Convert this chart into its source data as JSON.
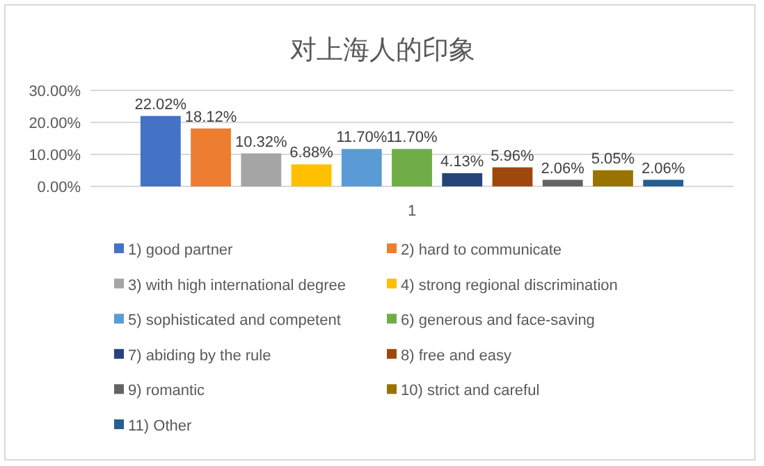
{
  "chart_data": {
    "type": "bar",
    "title": "对上海人的印象",
    "categories": [
      "1"
    ],
    "ylim": [
      0,
      30
    ],
    "yticks": [
      {
        "value": 0,
        "label": "0.00%"
      },
      {
        "value": 10,
        "label": "10.00%"
      },
      {
        "value": 20,
        "label": "20.00%"
      },
      {
        "value": 30,
        "label": "30.00%"
      }
    ],
    "grid": "y",
    "legend": "bottom",
    "series": [
      {
        "name": "1) good partner",
        "color": "#4472c4",
        "values": [
          22.02
        ],
        "value_labels": [
          "22.02%"
        ]
      },
      {
        "name": "2) hard to communicate",
        "color": "#ed7d31",
        "values": [
          18.12
        ],
        "value_labels": [
          "18.12%"
        ]
      },
      {
        "name": "3) with high international degree",
        "color": "#a5a5a5",
        "values": [
          10.32
        ],
        "value_labels": [
          "10.32%"
        ]
      },
      {
        "name": "4) strong regional discrimination",
        "color": "#ffc000",
        "values": [
          6.88
        ],
        "value_labels": [
          "6.88%"
        ]
      },
      {
        "name": "5) sophisticated and competent",
        "color": "#5b9bd5",
        "values": [
          11.7
        ],
        "value_labels": [
          "11.70%"
        ]
      },
      {
        "name": "6) generous and face-saving",
        "color": "#70ad47",
        "values": [
          11.7
        ],
        "value_labels": [
          "11.70%"
        ]
      },
      {
        "name": "7) abiding by the rule",
        "color": "#264478",
        "values": [
          4.13
        ],
        "value_labels": [
          "4.13%"
        ]
      },
      {
        "name": "8) free and easy",
        "color": "#9e480e",
        "values": [
          5.96
        ],
        "value_labels": [
          "5.96%"
        ]
      },
      {
        "name": "9) romantic",
        "color": "#636363",
        "values": [
          2.06
        ],
        "value_labels": [
          "2.06%"
        ]
      },
      {
        "name": "10) strict and careful",
        "color": "#997300",
        "values": [
          5.05
        ],
        "value_labels": [
          "5.05%"
        ]
      },
      {
        "name": "11) Other",
        "color": "#255e91",
        "values": [
          2.06
        ],
        "value_labels": [
          "2.06%"
        ]
      }
    ]
  }
}
